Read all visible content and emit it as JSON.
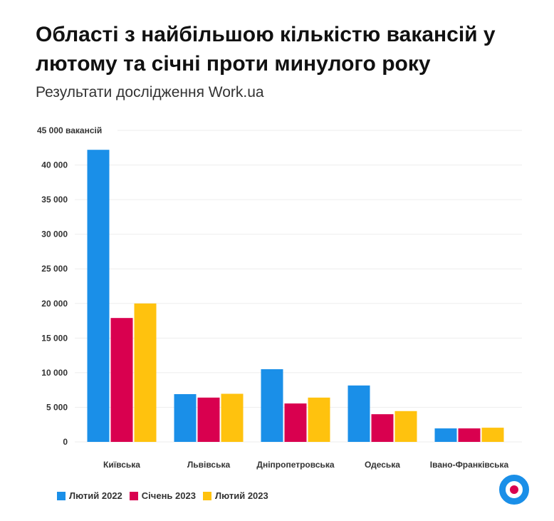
{
  "title": "Області з найбільшою кількістю вакансій у лютому та січні проти минулого року",
  "subtitle": "Результати дослідження Work.ua",
  "chart_data": {
    "type": "bar",
    "title": "Області з найбільшою кількістю вакансій у лютому та січні проти минулого року",
    "subtitle": "Результати дослідження Work.ua",
    "ylabel": "вакансій",
    "ylim": [
      0,
      45000
    ],
    "yticks": [
      "0",
      "5 000",
      "10 000",
      "15 000",
      "20 000",
      "25 000",
      "30 000",
      "35 000",
      "40 000",
      "45 000 вакансій"
    ],
    "ytick_values": [
      0,
      5000,
      10000,
      15000,
      20000,
      25000,
      30000,
      35000,
      40000,
      45000
    ],
    "grid": true,
    "legend_position": "bottom-left",
    "categories": [
      "Київська",
      "Львівська",
      "Дніпропетровська",
      "Одеська",
      "Івано-Франківська"
    ],
    "series": [
      {
        "name": "Лютий 2022",
        "color": "#1a8fe8",
        "values": [
          42200,
          6900,
          10500,
          8150,
          1950
        ]
      },
      {
        "name": "Січень 2023",
        "color": "#d9004f",
        "values": [
          17900,
          6400,
          5550,
          4000,
          1950
        ]
      },
      {
        "name": "Лютий 2023",
        "color": "#ffc20e",
        "values": [
          20000,
          6950,
          6400,
          4450,
          2050
        ]
      }
    ]
  },
  "logo": "work.ua-logo"
}
